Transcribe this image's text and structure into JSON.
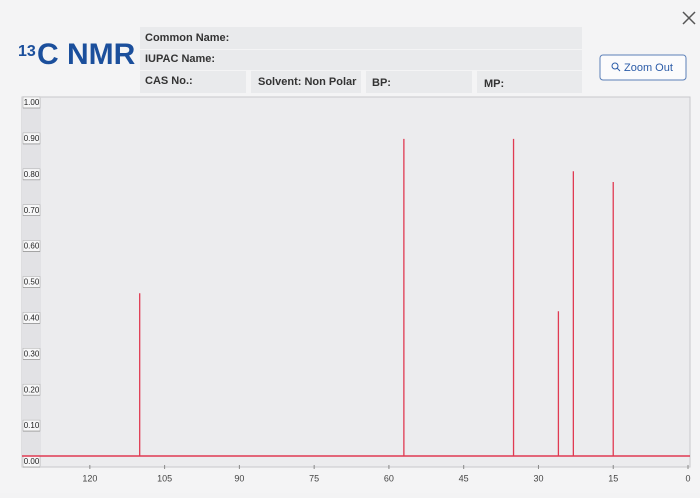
{
  "header": {
    "title_sup": "13",
    "title": "C NMR",
    "common_name": "Common Name:",
    "iupac_name": "IUPAC Name:",
    "cas": "CAS No.:",
    "solvent": "Solvent: Non Polar",
    "bp": "BP:",
    "mp": "MP:",
    "zoom_button": "Zoom Out"
  },
  "chart_data": {
    "type": "stem",
    "color": "#e03a52",
    "x": [
      110,
      57,
      35,
      26,
      23,
      15
    ],
    "values": [
      0.47,
      0.9,
      0.9,
      0.42,
      0.81,
      0.78
    ],
    "xlim": [
      130,
      0
    ],
    "xticks": [
      120,
      105,
      90,
      75,
      60,
      45,
      30,
      15,
      0
    ],
    "ylim": [
      0,
      1
    ],
    "yticks": [
      {
        "value": 0,
        "label": "0.00"
      },
      {
        "value": 0.1,
        "label": "0.10"
      },
      {
        "value": 0.2,
        "label": "0.20"
      },
      {
        "value": 0.3,
        "label": "0.30"
      },
      {
        "value": 0.4,
        "label": "0.40"
      },
      {
        "value": 0.5,
        "label": "0.50"
      },
      {
        "value": 0.6,
        "label": "0.60"
      },
      {
        "value": 0.7,
        "label": "0.70"
      },
      {
        "value": 0.8,
        "label": "0.80"
      },
      {
        "value": 0.9,
        "label": "0.90"
      },
      {
        "value": 1,
        "label": "1.00"
      }
    ],
    "grid": false
  }
}
